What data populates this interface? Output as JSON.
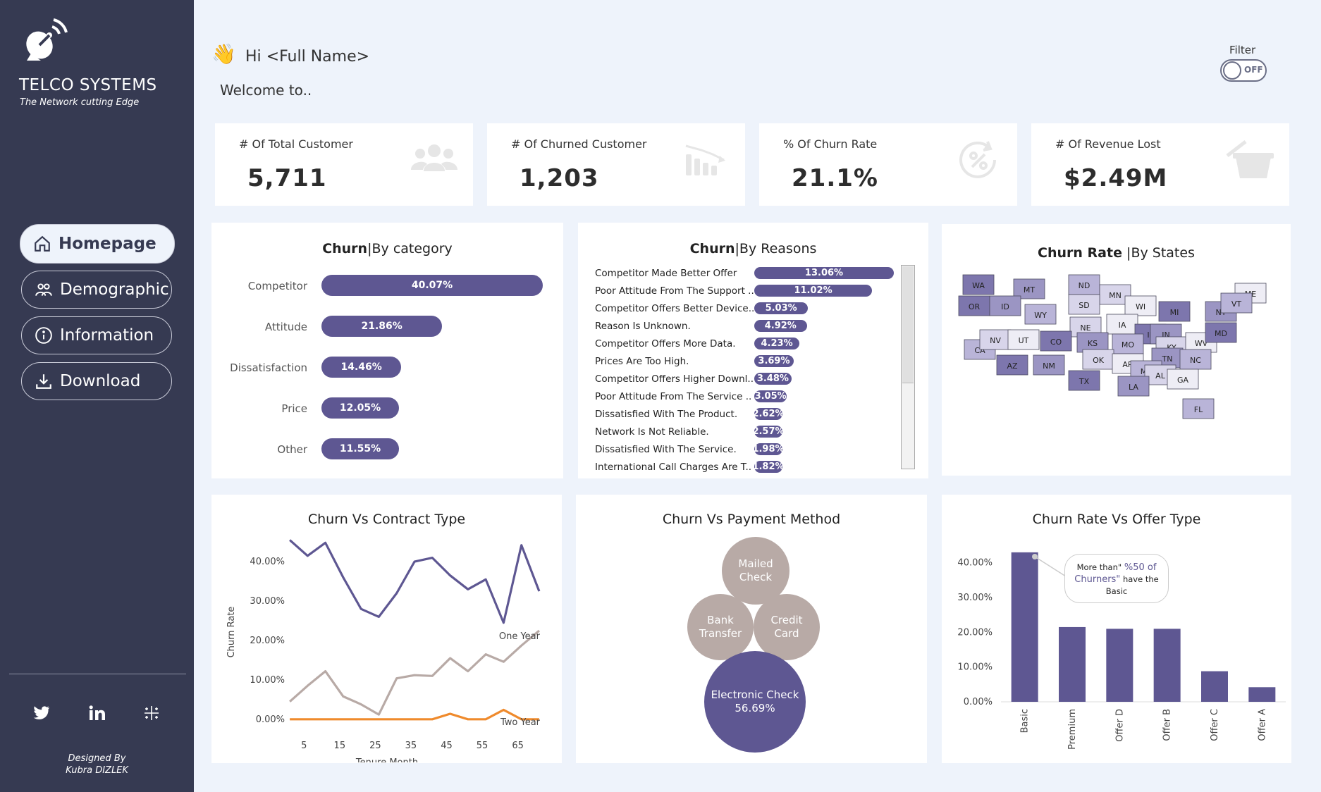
{
  "brand": {
    "name": "TELCO SYSTEMS",
    "tagline": "The Network cutting Edge"
  },
  "nav": [
    {
      "label": "Homepage",
      "icon": "home-icon",
      "active": true
    },
    {
      "label": "Demographic",
      "icon": "people-icon",
      "active": false
    },
    {
      "label": "Information",
      "icon": "info-icon",
      "active": false
    },
    {
      "label": "Download",
      "icon": "download-icon",
      "active": false
    }
  ],
  "social": [
    "twitter-icon",
    "linkedin-icon",
    "tableau-icon"
  ],
  "designed_by": {
    "line1": "Designed By",
    "line2": "Kubra DIZLEK"
  },
  "header": {
    "greeting": "Hi <Full Name>",
    "welcome": "Welcome to.."
  },
  "filter": {
    "label": "Filter",
    "state": "OFF"
  },
  "kpis": [
    {
      "label": "# Of Total Customer",
      "value": "5,711",
      "icon": "customers-icon"
    },
    {
      "label": "# Of Churned Customer",
      "value": "1,203",
      "icon": "declining-chart-icon"
    },
    {
      "label": "% Of Churn Rate",
      "value": "21.1%",
      "icon": "percent-refresh-icon"
    },
    {
      "label": "# Of Revenue Lost",
      "value": "$2.49M",
      "icon": "basket-icon"
    }
  ],
  "category_panel": {
    "title_bold": "Churn",
    "title_rest": "By category",
    "chart_data": {
      "type": "bar",
      "orientation": "horizontal",
      "categories": [
        "Competitor",
        "Attitude",
        "Dissatisfaction",
        "Price",
        "Other"
      ],
      "values": [
        40.07,
        21.86,
        14.46,
        12.05,
        11.55
      ],
      "labels": [
        "40.07%",
        "21.86%",
        "14.46%",
        "12.05%",
        "11.55%"
      ]
    }
  },
  "reasons_panel": {
    "title_bold": "Churn",
    "title_rest": "By Reasons",
    "chart_data": {
      "type": "bar",
      "orientation": "horizontal",
      "categories": [
        "Competitor Made Better Offer",
        "Poor Attitude From The Support ..",
        "Competitor Offers Better Device..",
        "Reason Is Unknown.",
        "Competitor Offers More Data.",
        "Prices Are Too High.",
        "Competitor Offers Higher Downl..",
        "Poor Attitude From The Service ..",
        "Dissatisfied With The Product.",
        "Network Is Not Reliable.",
        "Dissatisfied With The Service.",
        "International Call Charges Are T.."
      ],
      "values": [
        13.06,
        11.02,
        5.03,
        4.92,
        4.23,
        3.69,
        3.48,
        3.05,
        2.62,
        2.57,
        1.98,
        1.82
      ],
      "labels": [
        "13.06%",
        "11.02%",
        "5.03%",
        "4.92%",
        "4.23%",
        "3.69%",
        "3.48%",
        "3.05%",
        "2.62%",
        "2.57%",
        "1.98%",
        "1.82%"
      ]
    }
  },
  "states_panel": {
    "title_bold": "Churn Rate",
    "title_rest": "By States",
    "states": [
      "WA",
      "MT",
      "ND",
      "MN",
      "ME",
      "OR",
      "ID",
      "WY",
      "SD",
      "WI",
      "MI",
      "NY",
      "VT",
      "NE",
      "IA",
      "IL",
      "IN",
      "CA",
      "NV",
      "UT",
      "CO",
      "KS",
      "MO",
      "KY",
      "WV",
      "MD",
      "TN",
      "NC",
      "OK",
      "AR",
      "AZ",
      "NM",
      "MS",
      "AL",
      "GA",
      "TX",
      "LA",
      "FL"
    ]
  },
  "contract_panel": {
    "title": "Churn Vs Contract Type",
    "chart_data": {
      "type": "line",
      "xlabel": "Tenure Month",
      "ylabel": "Churn Rate",
      "x_ticks": [
        "5",
        "15",
        "25",
        "35",
        "45",
        "55",
        "65"
      ],
      "y_ticks": [
        "0.00%",
        "10.00%",
        "20.00%",
        "30.00%",
        "40.00%"
      ],
      "xlim": [
        0,
        72
      ],
      "ylim": [
        -2,
        47
      ],
      "x": [
        1,
        6,
        11,
        16,
        21,
        26,
        31,
        36,
        41,
        46,
        51,
        56,
        61,
        66,
        71
      ],
      "series": [
        {
          "name": "",
          "color": "#5e5792",
          "values": [
            45.5,
            41.5,
            44.8,
            36,
            28,
            26,
            32,
            40,
            41,
            36.5,
            33,
            35.5,
            24.5,
            44.2,
            32.5
          ]
        },
        {
          "name": "One Year",
          "color": "#b8aaa6",
          "values": [
            4.5,
            8.5,
            12.2,
            5.8,
            3.8,
            1.2,
            10.4,
            11.2,
            11,
            15.5,
            12.2,
            16.5,
            14.6,
            18.7,
            22.5
          ]
        },
        {
          "name": "Two Year",
          "color": "#ef8a2c",
          "values": [
            0,
            0,
            0,
            0,
            0,
            0,
            0,
            0,
            0,
            1.4,
            0,
            0,
            2.4,
            0,
            0
          ]
        }
      ]
    }
  },
  "payment_panel": {
    "title": "Churn Vs Payment Method",
    "bubbles": [
      {
        "line1": "Mailed",
        "line2": "Check"
      },
      {
        "line1": "Bank",
        "line2": "Transfer"
      },
      {
        "line1": "Credit",
        "line2": "Card"
      },
      {
        "line1": "Electronic Check",
        "line2": "56.69%"
      }
    ]
  },
  "offer_panel": {
    "title": "Churn Rate Vs Offer Type",
    "annotation": {
      "part1": "More than\"",
      "highlight": "%50 of Churners\"",
      "part2": "have the Basic"
    },
    "chart_data": {
      "type": "bar",
      "categories": [
        "Basic",
        "Premium",
        "Offer D",
        "Offer B",
        "Offer C",
        "Offer A"
      ],
      "values": [
        43,
        21.5,
        21,
        21,
        8.8,
        4.2
      ],
      "y_ticks": [
        "0.00%",
        "10.00%",
        "20.00%",
        "30.00%",
        "40.00%"
      ],
      "ylim": [
        0,
        45
      ]
    }
  }
}
